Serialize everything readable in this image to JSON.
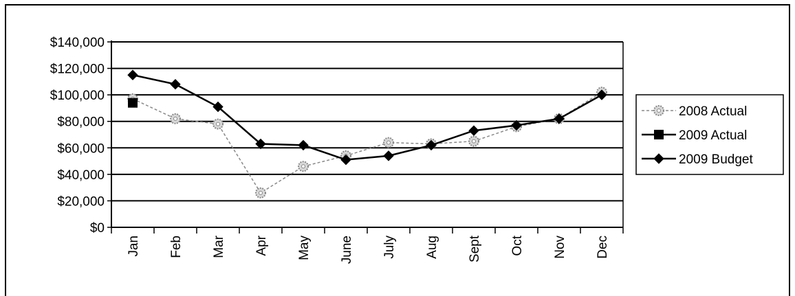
{
  "chart_data": {
    "type": "line",
    "title": "",
    "xlabel": "",
    "ylabel": "",
    "categories": [
      "Jan",
      "Feb",
      "Mar",
      "Apr",
      "May",
      "June",
      "July",
      "Aug",
      "Sept",
      "Oct",
      "Nov",
      "Dec"
    ],
    "y_ticks": [
      "$0",
      "$20,000",
      "$40,000",
      "$60,000",
      "$80,000",
      "$100,000",
      "$120,000",
      "$140,000"
    ],
    "ylim": [
      0,
      140000
    ],
    "grid": true,
    "legend_position": "right",
    "series": [
      {
        "name": "2008 Actual",
        "marker": "gear",
        "line_style": "dashed",
        "color": "#888888",
        "values": [
          97000,
          82000,
          78000,
          26000,
          46000,
          54000,
          64000,
          63000,
          65000,
          76000,
          82000,
          102000
        ]
      },
      {
        "name": "2009 Actual",
        "marker": "square",
        "line_style": "solid",
        "color": "#000000",
        "values": [
          94000,
          null,
          null,
          null,
          null,
          null,
          null,
          null,
          null,
          null,
          null,
          null
        ]
      },
      {
        "name": "2009 Budget",
        "marker": "diamond",
        "line_style": "solid",
        "color": "#000000",
        "values": [
          115000,
          108000,
          91000,
          63000,
          62000,
          51000,
          54000,
          62000,
          73000,
          77000,
          82000,
          100000
        ]
      }
    ]
  }
}
